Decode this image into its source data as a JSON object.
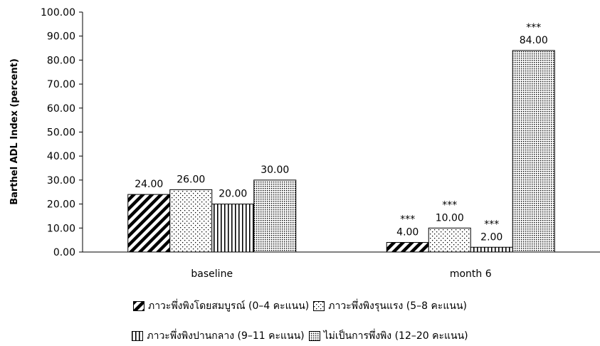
{
  "chart_data": {
    "type": "bar",
    "ylabel": "Barthel ADL Index  (percent)",
    "ylim": [
      0,
      100
    ],
    "y_ticks": [
      "0.00",
      "10.00",
      "20.00",
      "30.00",
      "40.00",
      "50.00",
      "60.00",
      "70.00",
      "80.00",
      "90.00",
      "100.00"
    ],
    "categories": [
      "baseline",
      "month 6"
    ],
    "series": [
      {
        "name": "ภาวะพึ่งพิงโดยสมบูรณ์ (0–4 คะแนน)",
        "pattern": "diagonal-stripes",
        "values": [
          24,
          4
        ],
        "labels": [
          "24.00",
          "4.00"
        ],
        "significance": [
          "",
          "***"
        ]
      },
      {
        "name": "ภาวะพึ่งพิงรุนแรง (5–8 คะแนน)",
        "pattern": "sparse-dots",
        "values": [
          26,
          10
        ],
        "labels": [
          "26.00",
          "10.00"
        ],
        "significance": [
          "",
          "***"
        ]
      },
      {
        "name": "ภาวะพึ่งพิงปานกลาง (9–11 คะแนน)",
        "pattern": "vertical-stripes",
        "values": [
          20,
          2
        ],
        "labels": [
          "20.00",
          "2.00"
        ],
        "significance": [
          "",
          "***"
        ]
      },
      {
        "name": "ไม่เป็นการพึ่งพิง (12–20 คะแนน)",
        "pattern": "dense-dots",
        "values": [
          30,
          84
        ],
        "labels": [
          "30.00",
          "84.00"
        ],
        "significance": [
          "",
          "***"
        ]
      }
    ],
    "legend_position": "bottom",
    "grid": false,
    "colors": {
      "bar_outline": "#000000",
      "axis": "#000000",
      "text": "#000000"
    }
  }
}
